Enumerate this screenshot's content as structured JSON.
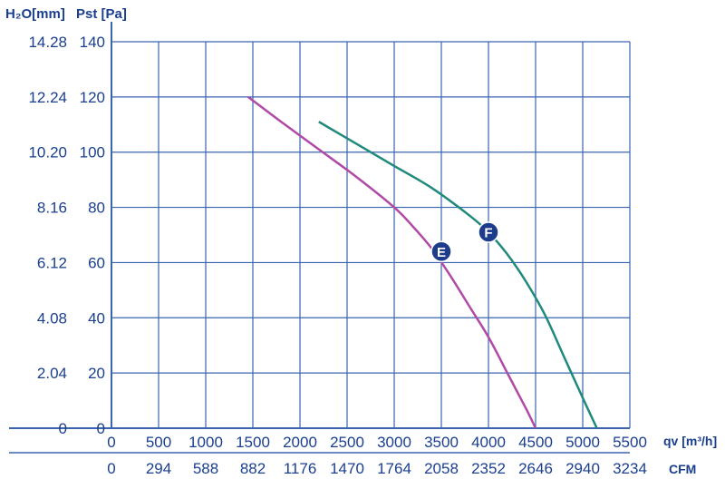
{
  "chart_data": {
    "type": "line",
    "title": "",
    "ylabel_primary": "Pst [Pa]",
    "ylabel_secondary": "H₂O[mm]",
    "xlabel_primary": "qv [m³/h]",
    "xlabel_secondary": "CFM",
    "xlim": [
      0,
      5500
    ],
    "ylim": [
      0,
      140
    ],
    "grid": true,
    "x_ticks": [
      "0",
      "500",
      "1000",
      "1500",
      "2000",
      "2500",
      "3000",
      "3500",
      "4000",
      "4500",
      "5000",
      "5500"
    ],
    "x_ticks_cfm": [
      "0",
      "294",
      "588",
      "882",
      "1176",
      "1470",
      "1764",
      "2058",
      "2352",
      "2646",
      "2940",
      "3234"
    ],
    "y_ticks": [
      "0",
      "20",
      "40",
      "60",
      "80",
      "100",
      "120",
      "140"
    ],
    "y_ticks_h2o": [
      "0",
      "2.04",
      "4.08",
      "6.12",
      "8.16",
      "10.20",
      "12.24",
      "14.28"
    ],
    "series": [
      {
        "name": "E",
        "color": "#b04aa6",
        "x": [
          1450,
          1800,
          2200,
          2600,
          3000,
          3200,
          3400,
          3600,
          3800,
          4000,
          4200,
          4400,
          4500
        ],
        "y": [
          120,
          111,
          101,
          91,
          80,
          73,
          65,
          55,
          44,
          33,
          20,
          7,
          0
        ],
        "marker": {
          "label": "E",
          "x": 3500,
          "y": 64
        }
      },
      {
        "name": "F",
        "color": "#1f8a7c",
        "x": [
          2200,
          2600,
          3000,
          3400,
          3800,
          4000,
          4200,
          4400,
          4600,
          4800,
          5000,
          5150
        ],
        "y": [
          111,
          103,
          95,
          87,
          77,
          71,
          63,
          53,
          41,
          26,
          11,
          0
        ],
        "marker": {
          "label": "F",
          "x": 4000,
          "y": 71
        }
      }
    ]
  }
}
